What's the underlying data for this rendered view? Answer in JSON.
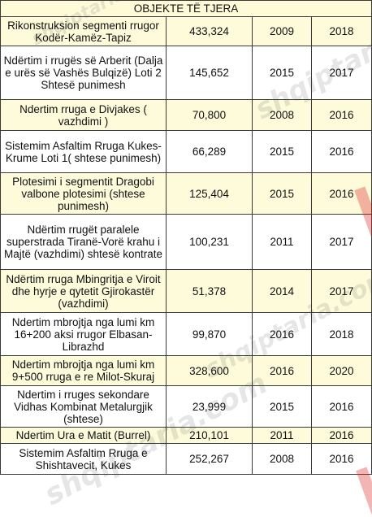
{
  "table": {
    "header": "OBJEKTE TË TJERA",
    "rows": [
      {
        "name": "Rikonstruksion segmenti rrugor Kodër-Kamëz-Tapiz",
        "value": "433,324",
        "start": "2009",
        "end": "2018"
      },
      {
        "name": "Ndërtim i rrugës së Arberit (Dalja e urës së Vashës Bulqizë) Loti 2 Shtesë punimesh",
        "value": "145,652",
        "start": "2015",
        "end": "2017"
      },
      {
        "name": "Ndertim rruga e Divjakes ( vazhdimi )",
        "value": "70,800",
        "start": "2008",
        "end": "2016"
      },
      {
        "name": "Sistemim Asfaltim Rruga Kukes-Krume Loti 1( shtese punimesh)",
        "value": "66,289",
        "start": "2015",
        "end": "2016"
      },
      {
        "name": "Plotesimi i segmentit Dragobi valbone plotesimi (shtese punimesh)",
        "value": "125,404",
        "start": "2015",
        "end": "2016"
      },
      {
        "name": "Ndërtim rrugët paralele superstrada Tiranë-Vorë krahu i Majtë (vazhdimi) shtesë kontrate",
        "value": "100,231",
        "start": "2011",
        "end": "2017"
      },
      {
        "name": "Ndërtim rruga Mbingritja e Viroit dhe hyrje e qytetit Gjirokastër (vazhdimi)",
        "value": "51,378",
        "start": "2014",
        "end": "2017"
      },
      {
        "name": "Ndertim mbrojtja nga lumi km 16+200 aksi rrugor Elbasan-Librazhd",
        "value": "99,870",
        "start": "2016",
        "end": "2018"
      },
      {
        "name": "Ndertim mbrojtja nga lumi km 9+500 rruga e re Milot-Skuraj",
        "value": "328,600",
        "start": "2016",
        "end": "2020"
      },
      {
        "name": "Ndertim i rruges sekondare Vidhas Kombinat Metalurgjik (shtese)",
        "value": "23,999",
        "start": "2015",
        "end": "2016"
      },
      {
        "name": "Ndertim Ura e Matit (Burrel)",
        "value": "210,101",
        "start": "2011",
        "end": "2016"
      },
      {
        "name": "Sistemim Asfaltim Rruga e Shishtavecit, Kukes",
        "value": "252,267",
        "start": "2008",
        "end": "2016"
      }
    ]
  },
  "watermark": "shqiptaria.com"
}
